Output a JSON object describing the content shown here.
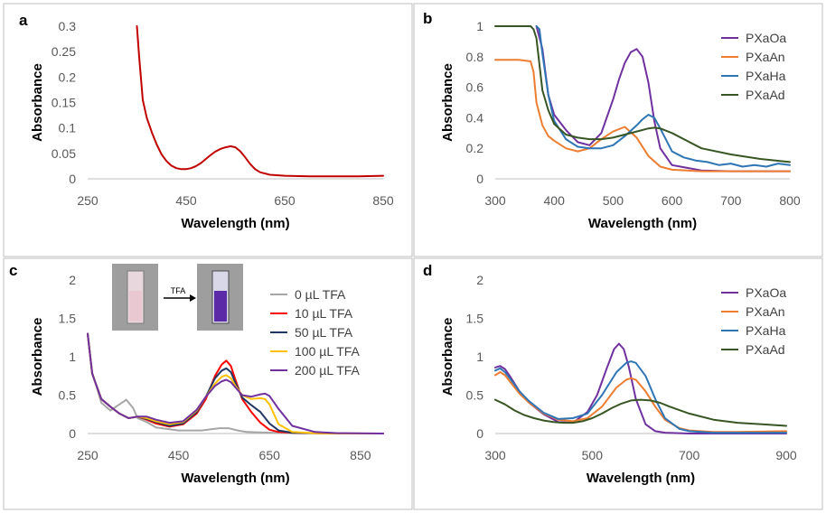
{
  "chart_data": [
    {
      "panel": "a",
      "type": "line",
      "xlabel": "Wavelength (nm)",
      "ylabel": "Absorbance",
      "xlim": [
        250,
        850
      ],
      "ylim": [
        0,
        0.3
      ],
      "xticks": [
        "250",
        "450",
        "650",
        "850"
      ],
      "yticks": [
        "0",
        "0.05",
        "0.1",
        "0.15",
        "0.2",
        "0.25",
        "0.3"
      ],
      "xtick_values": [
        250,
        450,
        650,
        850
      ],
      "ytick_values": [
        0,
        0.05,
        0.1,
        0.15,
        0.2,
        0.25,
        0.3
      ],
      "legend": "none",
      "series": [
        {
          "color": "#c00000",
          "x": [
            350,
            355,
            362,
            370,
            380,
            390,
            400,
            410,
            420,
            430,
            440,
            450,
            460,
            470,
            480,
            490,
            500,
            510,
            520,
            530,
            540,
            550,
            560,
            570,
            580,
            590,
            600,
            620,
            650,
            700,
            750,
            800,
            850
          ],
          "y": [
            0.3,
            0.235,
            0.155,
            0.12,
            0.092,
            0.068,
            0.048,
            0.035,
            0.026,
            0.021,
            0.019,
            0.019,
            0.021,
            0.025,
            0.031,
            0.039,
            0.047,
            0.054,
            0.059,
            0.062,
            0.064,
            0.062,
            0.054,
            0.042,
            0.029,
            0.019,
            0.013,
            0.008,
            0.006,
            0.005,
            0.005,
            0.005,
            0.006
          ]
        }
      ]
    },
    {
      "panel": "b",
      "type": "line",
      "xlabel": "Wavelength (nm)",
      "ylabel": "Absorbance",
      "xlim": [
        300,
        800
      ],
      "ylim": [
        0,
        1
      ],
      "xticks": [
        "300",
        "400",
        "500",
        "600",
        "700",
        "800"
      ],
      "yticks": [
        "0",
        "0.2",
        "0.4",
        "0.6",
        "0.8",
        "1"
      ],
      "xtick_values": [
        300,
        400,
        500,
        600,
        700,
        800
      ],
      "ytick_values": [
        0,
        0.2,
        0.4,
        0.6,
        0.8,
        1
      ],
      "legend": "right",
      "series": [
        {
          "name": "PXaOa",
          "color": "#7030a0",
          "x": [
            370,
            380,
            390,
            400,
            420,
            440,
            460,
            480,
            500,
            510,
            520,
            530,
            540,
            550,
            560,
            570,
            580,
            600,
            650,
            700,
            750,
            800
          ],
          "y": [
            1.0,
            0.85,
            0.55,
            0.42,
            0.32,
            0.24,
            0.22,
            0.3,
            0.52,
            0.65,
            0.76,
            0.83,
            0.85,
            0.8,
            0.63,
            0.38,
            0.2,
            0.09,
            0.055,
            0.05,
            0.05,
            0.05
          ]
        },
        {
          "name": "PXaAn",
          "color": "#ed7d31",
          "x": [
            300,
            320,
            340,
            360,
            365,
            370,
            380,
            390,
            400,
            420,
            440,
            460,
            480,
            500,
            520,
            540,
            560,
            580,
            600,
            650,
            700,
            750,
            800
          ],
          "y": [
            0.78,
            0.78,
            0.78,
            0.77,
            0.7,
            0.5,
            0.35,
            0.28,
            0.25,
            0.2,
            0.18,
            0.2,
            0.26,
            0.31,
            0.34,
            0.27,
            0.15,
            0.08,
            0.06,
            0.05,
            0.05,
            0.05,
            0.05
          ]
        },
        {
          "name": "PXaHa",
          "color": "#2e75b6",
          "x": [
            370,
            375,
            380,
            390,
            400,
            420,
            440,
            460,
            480,
            500,
            520,
            540,
            550,
            560,
            570,
            580,
            600,
            620,
            640,
            660,
            680,
            700,
            720,
            740,
            760,
            780,
            800
          ],
          "y": [
            1.0,
            0.98,
            0.82,
            0.55,
            0.38,
            0.26,
            0.21,
            0.2,
            0.2,
            0.22,
            0.28,
            0.35,
            0.39,
            0.42,
            0.4,
            0.33,
            0.18,
            0.14,
            0.12,
            0.11,
            0.09,
            0.1,
            0.08,
            0.09,
            0.08,
            0.1,
            0.09
          ]
        },
        {
          "name": "PXaAd",
          "color": "#375623",
          "x": [
            300,
            320,
            340,
            360,
            365,
            370,
            375,
            380,
            390,
            400,
            420,
            440,
            460,
            480,
            500,
            520,
            540,
            560,
            570,
            580,
            600,
            650,
            700,
            750,
            800
          ],
          "y": [
            1.0,
            1.0,
            1.0,
            1.0,
            0.98,
            0.92,
            0.75,
            0.58,
            0.45,
            0.36,
            0.29,
            0.27,
            0.26,
            0.26,
            0.27,
            0.29,
            0.31,
            0.33,
            0.335,
            0.33,
            0.3,
            0.2,
            0.16,
            0.13,
            0.11
          ]
        }
      ]
    },
    {
      "panel": "c",
      "type": "line",
      "xlabel": "Wavelength (nm)",
      "ylabel": "Absorbance",
      "xlim": [
        250,
        900
      ],
      "ylim": [
        0,
        2
      ],
      "xticks": [
        "250",
        "450",
        "650",
        "850"
      ],
      "yticks": [
        "0",
        "0.5",
        "1",
        "1.5",
        "2"
      ],
      "xtick_values": [
        250,
        450,
        650,
        850
      ],
      "ytick_values": [
        0,
        0.5,
        1,
        1.5,
        2
      ],
      "legend": "right",
      "inset": {
        "arrow_label": "TFA"
      },
      "series": [
        {
          "name": "0 µL TFA",
          "color": "#a6a6a6",
          "x": [
            250,
            260,
            280,
            300,
            320,
            335,
            350,
            360,
            380,
            400,
            450,
            500,
            540,
            560,
            580,
            600,
            650,
            700,
            900
          ],
          "y": [
            1.3,
            0.8,
            0.4,
            0.3,
            0.38,
            0.44,
            0.33,
            0.2,
            0.15,
            0.08,
            0.04,
            0.04,
            0.07,
            0.07,
            0.04,
            0.02,
            0.01,
            0.005,
            0.0
          ]
        },
        {
          "name": "10 µL TFA",
          "color": "#ff0000",
          "x": [
            250,
            260,
            280,
            300,
            320,
            340,
            360,
            380,
            400,
            430,
            460,
            490,
            510,
            530,
            545,
            555,
            565,
            575,
            590,
            610,
            630,
            650,
            670,
            700,
            750,
            800,
            900
          ],
          "y": [
            1.3,
            0.78,
            0.45,
            0.35,
            0.26,
            0.2,
            0.22,
            0.18,
            0.13,
            0.09,
            0.12,
            0.26,
            0.45,
            0.75,
            0.9,
            0.95,
            0.88,
            0.7,
            0.45,
            0.28,
            0.14,
            0.05,
            0.02,
            0.01,
            0.005,
            0.0,
            0.0
          ]
        },
        {
          "name": "50 µL TFA",
          "color": "#203864",
          "x": [
            250,
            260,
            280,
            300,
            320,
            340,
            360,
            380,
            400,
            430,
            460,
            490,
            510,
            530,
            545,
            555,
            565,
            575,
            590,
            610,
            630,
            650,
            670,
            700,
            750,
            800,
            900
          ],
          "y": [
            1.3,
            0.78,
            0.45,
            0.35,
            0.26,
            0.2,
            0.22,
            0.19,
            0.15,
            0.1,
            0.13,
            0.28,
            0.48,
            0.72,
            0.82,
            0.85,
            0.8,
            0.66,
            0.47,
            0.37,
            0.28,
            0.13,
            0.04,
            0.01,
            0.005,
            0.0,
            0.0
          ]
        },
        {
          "name": "100 µL TFA",
          "color": "#ffc000",
          "x": [
            250,
            260,
            280,
            300,
            320,
            340,
            360,
            380,
            400,
            430,
            460,
            490,
            510,
            530,
            545,
            555,
            565,
            575,
            590,
            610,
            630,
            640,
            650,
            670,
            700,
            750,
            800,
            900
          ],
          "y": [
            1.3,
            0.78,
            0.45,
            0.35,
            0.26,
            0.2,
            0.22,
            0.2,
            0.16,
            0.12,
            0.15,
            0.3,
            0.48,
            0.65,
            0.74,
            0.76,
            0.72,
            0.62,
            0.5,
            0.45,
            0.46,
            0.45,
            0.38,
            0.12,
            0.02,
            0.005,
            0.0,
            0.0
          ]
        },
        {
          "name": "200 µL TFA",
          "color": "#7030a0",
          "x": [
            250,
            260,
            280,
            300,
            320,
            340,
            360,
            380,
            400,
            430,
            460,
            490,
            510,
            530,
            545,
            555,
            565,
            575,
            590,
            610,
            630,
            640,
            650,
            670,
            700,
            750,
            800,
            900
          ],
          "y": [
            1.3,
            0.78,
            0.45,
            0.35,
            0.26,
            0.2,
            0.22,
            0.22,
            0.18,
            0.14,
            0.16,
            0.31,
            0.48,
            0.62,
            0.68,
            0.7,
            0.67,
            0.6,
            0.5,
            0.48,
            0.51,
            0.52,
            0.49,
            0.32,
            0.1,
            0.02,
            0.005,
            0.0
          ]
        }
      ]
    },
    {
      "panel": "d",
      "type": "line",
      "xlabel": "Wavelength (nm)",
      "ylabel": "Absorbance",
      "xlim": [
        300,
        900
      ],
      "ylim": [
        0,
        2
      ],
      "xticks": [
        "300",
        "500",
        "700",
        "900"
      ],
      "yticks": [
        "0",
        "0.5",
        "1",
        "1.5",
        "2"
      ],
      "xtick_values": [
        300,
        500,
        700,
        900
      ],
      "ytick_values": [
        0,
        0.5,
        1,
        1.5,
        2
      ],
      "legend": "right",
      "series": [
        {
          "name": "PXaOa",
          "color": "#7030a0",
          "x": [
            300,
            310,
            320,
            330,
            350,
            370,
            400,
            430,
            460,
            490,
            510,
            530,
            545,
            555,
            565,
            575,
            590,
            610,
            630,
            650,
            700,
            800,
            900
          ],
          "y": [
            0.86,
            0.88,
            0.84,
            0.75,
            0.55,
            0.4,
            0.25,
            0.15,
            0.14,
            0.28,
            0.5,
            0.85,
            1.1,
            1.17,
            1.1,
            0.88,
            0.45,
            0.12,
            0.03,
            0.01,
            0.0,
            0.0,
            0.0
          ]
        },
        {
          "name": "PXaAn",
          "color": "#ed7d31",
          "x": [
            300,
            310,
            320,
            330,
            350,
            370,
            400,
            430,
            460,
            490,
            520,
            550,
            570,
            580,
            590,
            610,
            630,
            650,
            680,
            700,
            750,
            800,
            900
          ],
          "y": [
            0.76,
            0.8,
            0.76,
            0.68,
            0.52,
            0.4,
            0.26,
            0.18,
            0.16,
            0.2,
            0.35,
            0.6,
            0.7,
            0.72,
            0.7,
            0.55,
            0.35,
            0.18,
            0.07,
            0.04,
            0.02,
            0.02,
            0.03
          ]
        },
        {
          "name": "PXaHa",
          "color": "#2e75b6",
          "x": [
            300,
            310,
            320,
            330,
            350,
            370,
            400,
            430,
            460,
            490,
            520,
            550,
            570,
            580,
            590,
            610,
            630,
            650,
            680,
            700,
            750,
            800,
            900
          ],
          "y": [
            0.82,
            0.85,
            0.8,
            0.72,
            0.55,
            0.42,
            0.27,
            0.19,
            0.2,
            0.26,
            0.5,
            0.8,
            0.92,
            0.94,
            0.92,
            0.75,
            0.45,
            0.2,
            0.06,
            0.03,
            0.01,
            0.01,
            0.01
          ]
        },
        {
          "name": "PXaAd",
          "color": "#375623",
          "x": [
            300,
            320,
            340,
            360,
            380,
            400,
            420,
            440,
            460,
            480,
            500,
            520,
            540,
            560,
            580,
            600,
            620,
            640,
            660,
            700,
            750,
            800,
            850,
            900
          ],
          "y": [
            0.44,
            0.38,
            0.3,
            0.24,
            0.2,
            0.17,
            0.15,
            0.14,
            0.14,
            0.16,
            0.2,
            0.26,
            0.33,
            0.39,
            0.43,
            0.44,
            0.43,
            0.4,
            0.35,
            0.26,
            0.18,
            0.14,
            0.12,
            0.1
          ]
        }
      ]
    }
  ]
}
